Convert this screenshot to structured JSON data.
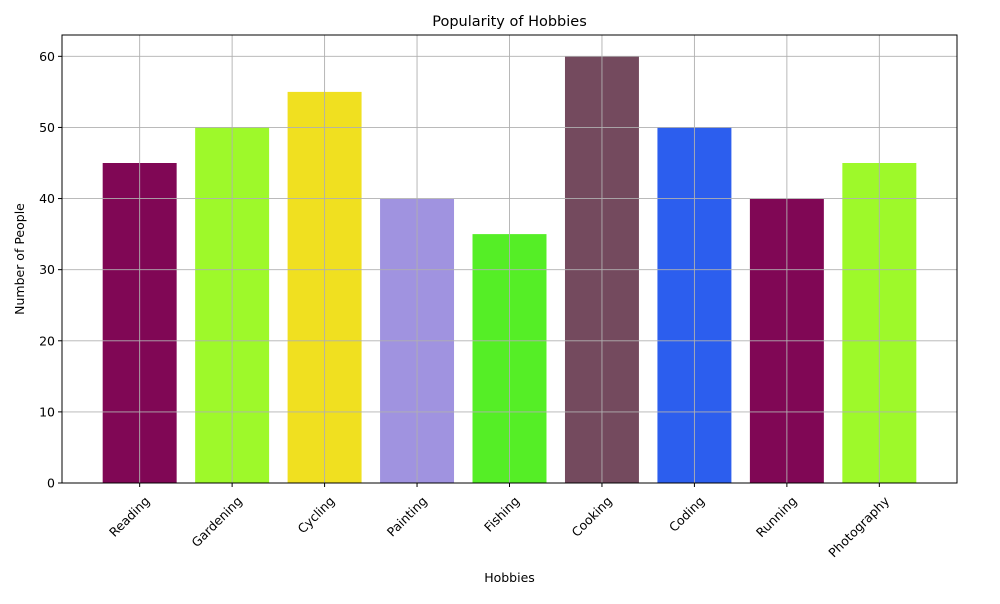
{
  "chart_data": {
    "type": "bar",
    "title": "Popularity of Hobbies",
    "xlabel": "Hobbies",
    "ylabel": "Number of People",
    "categories": [
      "Reading",
      "Gardening",
      "Cycling",
      "Painting",
      "Fishing",
      "Cooking",
      "Coding",
      "Running",
      "Photography"
    ],
    "values": [
      45,
      50,
      55,
      40,
      35,
      60,
      50,
      40,
      45
    ],
    "colors": [
      "#800755",
      "#9ef92a",
      "#f0e020",
      "#a093e0",
      "#55ee26",
      "#744a5e",
      "#2c5eee",
      "#800755",
      "#9ef92a"
    ],
    "ylim": [
      0,
      63
    ],
    "yticks": [
      0,
      10,
      20,
      30,
      40,
      50,
      60
    ],
    "grid": true,
    "xtick_rotation": 45
  }
}
